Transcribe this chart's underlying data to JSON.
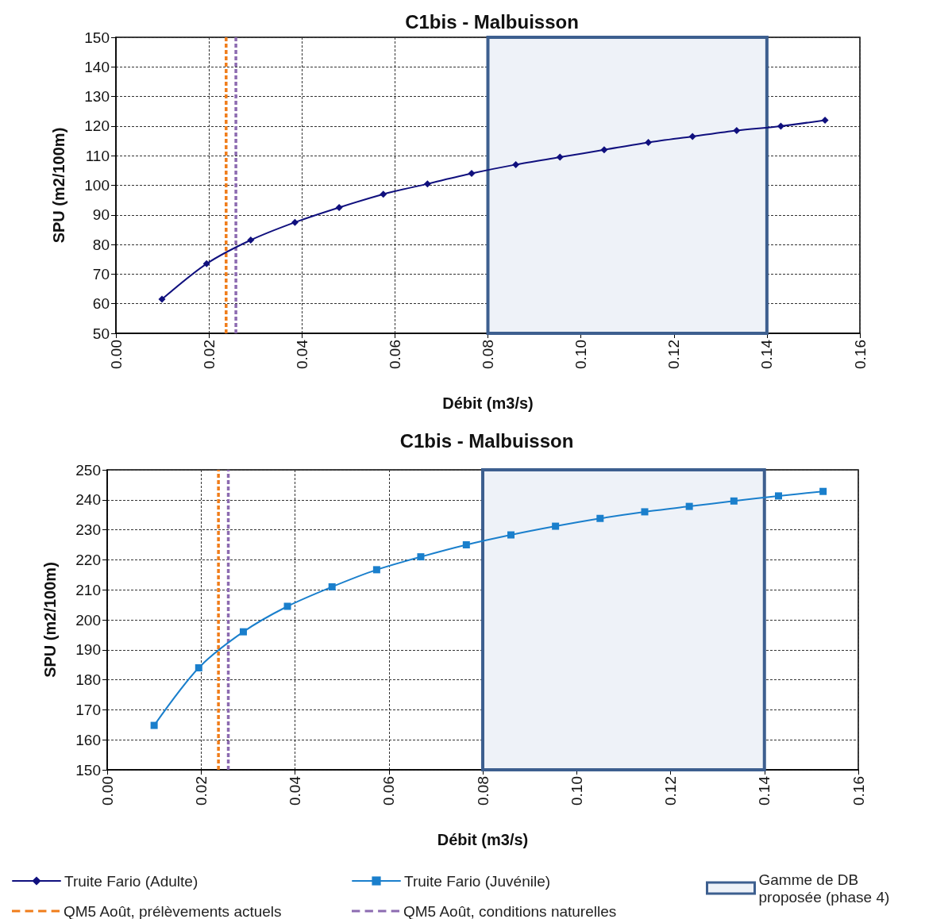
{
  "chart_data": [
    {
      "type": "line",
      "title": "C1bis - Malbuisson",
      "xlabel": "Débit (m3/s)",
      "ylabel": "SPU (m2/100m)",
      "xlim": [
        0,
        0.16
      ],
      "ylim": [
        50,
        150
      ],
      "xticks": [
        {
          "value": 0,
          "label": "0.00"
        },
        {
          "value": 0.02,
          "label": "0.02"
        },
        {
          "value": 0.04,
          "label": "0.04"
        },
        {
          "value": 0.06,
          "label": "0.06"
        },
        {
          "value": 0.08,
          "label": "0.08"
        },
        {
          "value": 0.1,
          "label": "0.10"
        },
        {
          "value": 0.12,
          "label": "0.12"
        },
        {
          "value": 0.14,
          "label": "0.14"
        },
        {
          "value": 0.16,
          "label": "0.16"
        }
      ],
      "yticks": [
        50,
        60,
        70,
        80,
        90,
        100,
        110,
        120,
        130,
        140,
        150
      ],
      "grid": true,
      "legend": "bottom",
      "marker": "diamond",
      "line_style": "solid",
      "series": [
        {
          "name": "Truite Fario (Adulte)",
          "color": "#10107e",
          "x": [
            0.0099,
            0.0195,
            0.029,
            0.0385,
            0.048,
            0.0575,
            0.067,
            0.0765,
            0.086,
            0.0955,
            0.105,
            0.1145,
            0.124,
            0.1335,
            0.143,
            0.1525
          ],
          "values": [
            61.5,
            73.5,
            81.5,
            87.5,
            92.5,
            97,
            100.5,
            104,
            107,
            109.5,
            112,
            114.5,
            116.5,
            118.5,
            120,
            122
          ]
        }
      ],
      "ref_lines": [
        {
          "axis": "x",
          "value": 0.0237,
          "color": "#f07d1a",
          "line_style": "dashed"
        },
        {
          "axis": "x",
          "value": 0.0258,
          "color": "#8c6bb1",
          "line_style": "dashed"
        }
      ],
      "bands": [
        {
          "axis": "x",
          "from": 0.08,
          "to": 0.14,
          "color": "#eef2f8"
        }
      ]
    },
    {
      "type": "line",
      "title": "C1bis - Malbuisson",
      "xlabel": "Débit (m3/s)",
      "ylabel": "SPU (m2/100m)",
      "xlim": [
        0,
        0.16
      ],
      "ylim": [
        150,
        250
      ],
      "xticks": [
        {
          "value": 0,
          "label": "0.00"
        },
        {
          "value": 0.02,
          "label": "0.02"
        },
        {
          "value": 0.04,
          "label": "0.04"
        },
        {
          "value": 0.06,
          "label": "0.06"
        },
        {
          "value": 0.08,
          "label": "0.08"
        },
        {
          "value": 0.1,
          "label": "0.10"
        },
        {
          "value": 0.12,
          "label": "0.12"
        },
        {
          "value": 0.14,
          "label": "0.14"
        },
        {
          "value": 0.16,
          "label": "0.16"
        }
      ],
      "yticks": [
        150,
        160,
        170,
        180,
        190,
        200,
        210,
        220,
        230,
        240,
        250
      ],
      "grid": true,
      "legend": "bottom",
      "marker": "square",
      "line_style": "solid",
      "series": [
        {
          "name": "Truite Fario (Juvénile)",
          "color": "#1a7fcc",
          "x": [
            0.01,
            0.0195,
            0.029,
            0.0384,
            0.0479,
            0.0574,
            0.0668,
            0.0765,
            0.086,
            0.0955,
            0.105,
            0.1145,
            0.124,
            0.1335,
            0.143,
            0.1525
          ],
          "values": [
            164.8,
            184,
            196,
            204.5,
            211,
            216.7,
            221,
            225,
            228.3,
            231.2,
            233.8,
            236,
            237.8,
            239.6,
            241.3,
            242.8
          ]
        }
      ],
      "ref_lines": [
        {
          "axis": "x",
          "value": 0.0237,
          "label": "QM5 Août, prélèvements actuels",
          "color": "#f07d1a",
          "line_style": "dashed"
        },
        {
          "axis": "x",
          "value": 0.0258,
          "label": "QM5 Août, conditions naturelles",
          "color": "#8c6bb1",
          "line_style": "dashed"
        }
      ],
      "bands": [
        {
          "axis": "x",
          "from": 0.08,
          "to": 0.14,
          "label": "Gamme de DB proposée (phase 4)",
          "color": "#eef2f8"
        }
      ]
    }
  ]
}
